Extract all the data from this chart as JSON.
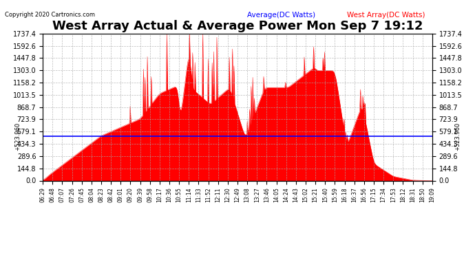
{
  "title": "West Array Actual & Average Power Mon Sep 7 19:12",
  "copyright": "Copyright 2020 Cartronics.com",
  "legend_average": "Average(DC Watts)",
  "legend_west": "West Array(DC Watts)",
  "average_value": 523.96,
  "y_max": 1737.4,
  "y_min": 0.0,
  "y_ticks": [
    0.0,
    144.8,
    289.6,
    434.3,
    579.1,
    723.9,
    868.7,
    1013.5,
    1158.2,
    1303.0,
    1447.8,
    1592.6,
    1737.4
  ],
  "title_fontsize": 13,
  "avg_color": "blue",
  "west_color": "red",
  "fill_color": "red",
  "background_color": "#ffffff",
  "grid_color": "#aaaaaa",
  "x_tick_labels": [
    "06:29",
    "06:48",
    "07:07",
    "07:26",
    "07:45",
    "08:04",
    "08:23",
    "08:42",
    "09:01",
    "09:20",
    "09:39",
    "09:58",
    "10:17",
    "10:36",
    "10:55",
    "11:14",
    "11:33",
    "11:52",
    "12:11",
    "12:30",
    "12:49",
    "13:08",
    "13:27",
    "13:46",
    "14:05",
    "14:24",
    "14:43",
    "15:02",
    "15:21",
    "15:40",
    "15:59",
    "16:18",
    "16:37",
    "16:56",
    "17:15",
    "17:34",
    "17:53",
    "18:12",
    "18:31",
    "18:50",
    "19:09"
  ]
}
